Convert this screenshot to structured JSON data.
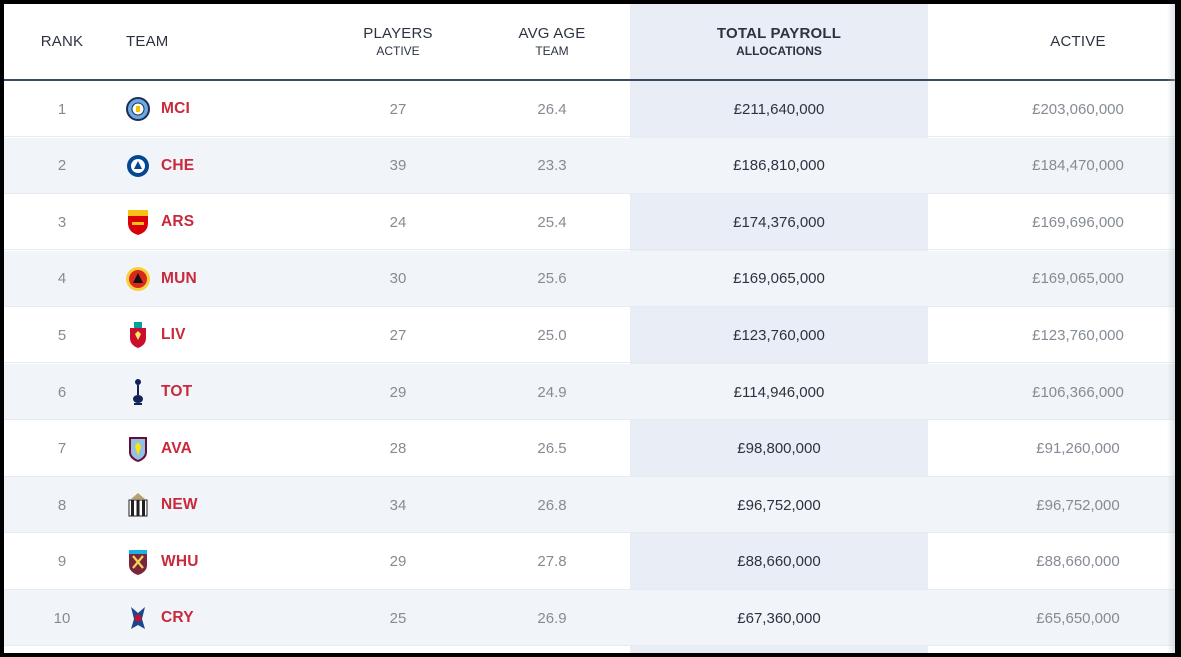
{
  "columns": {
    "rank": "RANK",
    "team": "TEAM",
    "players_main": "PLAYERS",
    "players_sub": "ACTIVE",
    "age_main": "AVG AGE",
    "age_sub": "TEAM",
    "payroll_main": "TOTAL PAYROLL",
    "payroll_sub": "ALLOCATIONS",
    "active": "ACTIVE"
  },
  "rows": [
    {
      "rank": "1",
      "team": "MCI",
      "crest_icon": "man-city-crest-icon",
      "crest_color": "#6cabdd",
      "players": "27",
      "avg_age": "26.4",
      "payroll": "£211,640,000",
      "active": "£203,060,000"
    },
    {
      "rank": "2",
      "team": "CHE",
      "crest_icon": "chelsea-crest-icon",
      "crest_color": "#034694",
      "players": "39",
      "avg_age": "23.3",
      "payroll": "£186,810,000",
      "active": "£184,470,000"
    },
    {
      "rank": "3",
      "team": "ARS",
      "crest_icon": "arsenal-crest-icon",
      "crest_color": "#db0007",
      "players": "24",
      "avg_age": "25.4",
      "payroll": "£174,376,000",
      "active": "£169,696,000"
    },
    {
      "rank": "4",
      "team": "MUN",
      "crest_icon": "man-utd-crest-icon",
      "crest_color": "#da291c",
      "players": "30",
      "avg_age": "25.6",
      "payroll": "£169,065,000",
      "active": "£169,065,000"
    },
    {
      "rank": "5",
      "team": "LIV",
      "crest_icon": "liverpool-crest-icon",
      "crest_color": "#c8102e",
      "players": "27",
      "avg_age": "25.0",
      "payroll": "£123,760,000",
      "active": "£123,760,000"
    },
    {
      "rank": "6",
      "team": "TOT",
      "crest_icon": "tottenham-crest-icon",
      "crest_color": "#132257",
      "players": "29",
      "avg_age": "24.9",
      "payroll": "£114,946,000",
      "active": "£106,366,000"
    },
    {
      "rank": "7",
      "team": "AVA",
      "crest_icon": "aston-villa-crest-icon",
      "crest_color": "#95bfe5",
      "players": "28",
      "avg_age": "26.5",
      "payroll": "£98,800,000",
      "active": "£91,260,000"
    },
    {
      "rank": "8",
      "team": "NEW",
      "crest_icon": "newcastle-crest-icon",
      "crest_color": "#241f20",
      "players": "34",
      "avg_age": "26.8",
      "payroll": "£96,752,000",
      "active": "£96,752,000"
    },
    {
      "rank": "9",
      "team": "WHU",
      "crest_icon": "west-ham-crest-icon",
      "crest_color": "#7a263a",
      "players": "29",
      "avg_age": "27.8",
      "payroll": "£88,660,000",
      "active": "£88,660,000"
    },
    {
      "rank": "10",
      "team": "CRY",
      "crest_icon": "crystal-palace-crest-icon",
      "crest_color": "#1b458f",
      "players": "25",
      "avg_age": "26.9",
      "payroll": "£67,360,000",
      "active": "£65,650,000"
    }
  ],
  "colors": {
    "team_abbr": "#c8293b",
    "highlight_column": "#e9eef6",
    "alt_row": "#f1f5fa",
    "header_rule": "#3a4a60"
  }
}
